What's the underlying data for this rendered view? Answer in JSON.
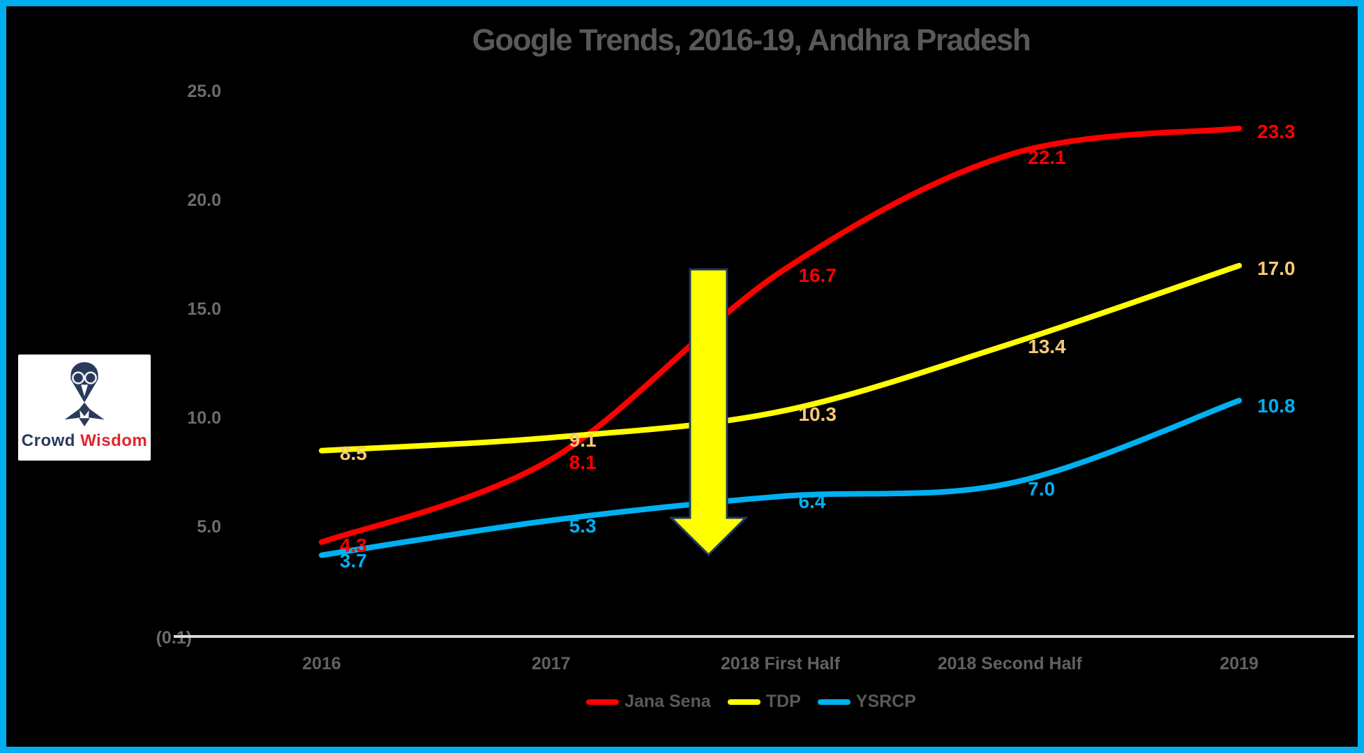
{
  "window": {
    "background": "#000000",
    "border_color": "#00AEEF"
  },
  "chart_data": {
    "type": "line",
    "title": "Google Trends, 2016-19, Andhra Pradesh",
    "xlabel": "",
    "ylabel": "",
    "categories": [
      "2016",
      "2017",
      "2018 First Half",
      "2018 Second Half",
      "2019"
    ],
    "series": [
      {
        "name": "Jana Sena",
        "color": "#FF0000",
        "label_color": "#FF0000",
        "values": [
          4.3,
          8.1,
          16.7,
          22.1,
          23.3
        ],
        "labels": [
          "4.3",
          "8.1",
          "16.7",
          "22.1",
          "23.3"
        ]
      },
      {
        "name": "TDP",
        "color": "#FFFF00",
        "label_color": "#F9C878",
        "values": [
          8.5,
          9.1,
          10.3,
          13.4,
          17.0
        ],
        "labels": [
          "8.5",
          "9.1",
          "10.3",
          "13.4",
          "17.0"
        ]
      },
      {
        "name": "YSRCP",
        "color": "#00B0F0",
        "label_color": "#00B0F0",
        "values": [
          3.7,
          5.3,
          6.4,
          7.0,
          10.8
        ],
        "labels": [
          "3.7",
          "5.3",
          "6.4",
          "7.0",
          "10.8"
        ]
      }
    ],
    "y_axis": {
      "ticks": [
        {
          "label": "25.0",
          "value": 25.0
        },
        {
          "label": "20.0",
          "value": 20.0
        },
        {
          "label": "15.0",
          "value": 15.0
        },
        {
          "label": "10.0",
          "value": 10.0
        },
        {
          "label": "5.0",
          "value": 5.0
        },
        {
          "label": "(0.1)",
          "value": -0.1
        }
      ]
    },
    "ylim": [
      -0.1,
      26
    ],
    "grid": false,
    "legend_position": "bottom",
    "annotation": {
      "type": "down-arrow",
      "fill": "#FFFF00",
      "outline": "#1F3864"
    },
    "axis_line_color": "#D9D9D9"
  },
  "logo": {
    "text_primary": "Crowd",
    "text_secondary": "Wisdom",
    "primary_color": "#2B3A5C",
    "secondary_color": "#E2242B",
    "icon": "owl-with-glasses"
  }
}
